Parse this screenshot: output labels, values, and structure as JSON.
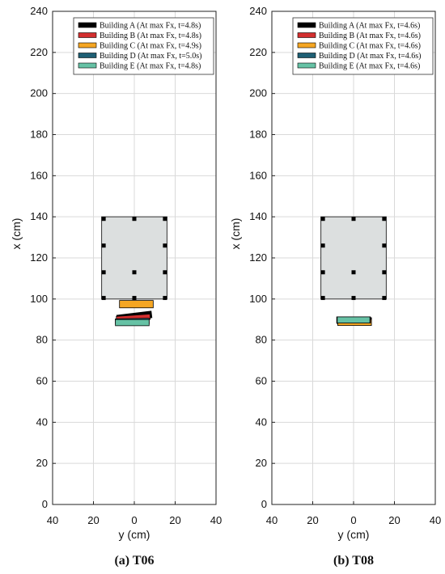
{
  "chart_data": [
    {
      "type": "scatter",
      "caption": "(a) T06",
      "xlabel": "y (cm)",
      "ylabel": "x (cm)",
      "xlim": [
        -40,
        40
      ],
      "ylim": [
        0,
        240
      ],
      "x_ticks": [
        -40,
        -20,
        0,
        20,
        40
      ],
      "x_tick_labels": [
        "40",
        "20",
        "0",
        "20",
        "40"
      ],
      "y_ticks": [
        0,
        20,
        40,
        60,
        80,
        100,
        120,
        140,
        160,
        180,
        200,
        220,
        240
      ],
      "grid": true,
      "legend_position": "top-right",
      "obstacle": {
        "y_range": [
          -16,
          16
        ],
        "x_range": [
          100,
          140
        ],
        "color": "#dcdfdf",
        "markers": [
          [
            -15,
            139
          ],
          [
            0,
            139
          ],
          [
            15,
            139
          ],
          [
            -15,
            126
          ],
          [
            15,
            126
          ],
          [
            -15,
            113
          ],
          [
            0,
            113
          ],
          [
            15,
            113
          ],
          [
            -15,
            100.5
          ],
          [
            0,
            100.5
          ],
          [
            15,
            100.5
          ]
        ]
      },
      "buildings": [
        {
          "name": "Building A (At max Fx, t=4.8s)",
          "color": "#000000",
          "y_center": 0,
          "x_center": 91.5,
          "width": 17,
          "height": 3.2,
          "angle_deg": 7
        },
        {
          "name": "Building B (At max Fx, t=4.8s)",
          "color": "#d32f2f",
          "y_center": -0.5,
          "x_center": 90.8,
          "width": 16.5,
          "height": 2.6,
          "angle_deg": 4
        },
        {
          "name": "Building C (At max Fx, t=4.9s)",
          "color": "#f5a623",
          "y_center": 1,
          "x_center": 97.5,
          "width": 16.5,
          "height": 3.6,
          "angle_deg": 0
        },
        {
          "name": "Building D (At max Fx, t=5.0s)",
          "color": "#1e5f74",
          "y_center": -1,
          "x_center": 89.2,
          "width": 16.5,
          "height": 2.6,
          "angle_deg": 1
        },
        {
          "name": "Building E (At max Fx, t=4.8s)",
          "color": "#66c2a5",
          "y_center": -1,
          "x_center": 88.5,
          "width": 16.5,
          "height": 3.0,
          "angle_deg": 0
        }
      ]
    },
    {
      "type": "scatter",
      "caption": "(b) T08",
      "xlabel": "y (cm)",
      "ylabel": "x (cm)",
      "xlim": [
        -40,
        40
      ],
      "ylim": [
        0,
        240
      ],
      "x_ticks": [
        -40,
        -20,
        0,
        20,
        40
      ],
      "x_tick_labels": [
        "40",
        "20",
        "0",
        "20",
        "40"
      ],
      "y_ticks": [
        0,
        20,
        40,
        60,
        80,
        100,
        120,
        140,
        160,
        180,
        200,
        220,
        240
      ],
      "grid": true,
      "legend_position": "top-right",
      "obstacle": {
        "y_range": [
          -16,
          16
        ],
        "x_range": [
          100,
          140
        ],
        "color": "#dcdfdf",
        "markers": [
          [
            -15,
            139
          ],
          [
            0,
            139
          ],
          [
            15,
            139
          ],
          [
            -15,
            126
          ],
          [
            15,
            126
          ],
          [
            -15,
            113
          ],
          [
            0,
            113
          ],
          [
            15,
            113
          ],
          [
            -15,
            100.5
          ],
          [
            0,
            100.5
          ],
          [
            15,
            100.5
          ]
        ]
      },
      "buildings": [
        {
          "name": "Building A (At max Fx, t=4.6s)",
          "color": "#000000",
          "y_center": 0.5,
          "x_center": 89.4,
          "width": 16.5,
          "height": 3.2,
          "angle_deg": -1
        },
        {
          "name": "Building B (At max Fx, t=4.6s)",
          "color": "#d32f2f",
          "y_center": 0.3,
          "x_center": 89.2,
          "width": 16.5,
          "height": 3.0,
          "angle_deg": -1
        },
        {
          "name": "Building C (At max Fx, t=4.6s)",
          "color": "#f5a623",
          "y_center": 0.5,
          "x_center": 88.6,
          "width": 16.5,
          "height": 3.0,
          "angle_deg": 0
        },
        {
          "name": "Building D (At max Fx, t=4.6s)",
          "color": "#1e5f74",
          "y_center": 0,
          "x_center": 89.8,
          "width": 16.5,
          "height": 3.0,
          "angle_deg": 0
        },
        {
          "name": "Building E (At max Fx, t=4.6s)",
          "color": "#66c2a5",
          "y_center": 0,
          "x_center": 89.8,
          "width": 16,
          "height": 3.0,
          "angle_deg": 0
        }
      ]
    }
  ]
}
